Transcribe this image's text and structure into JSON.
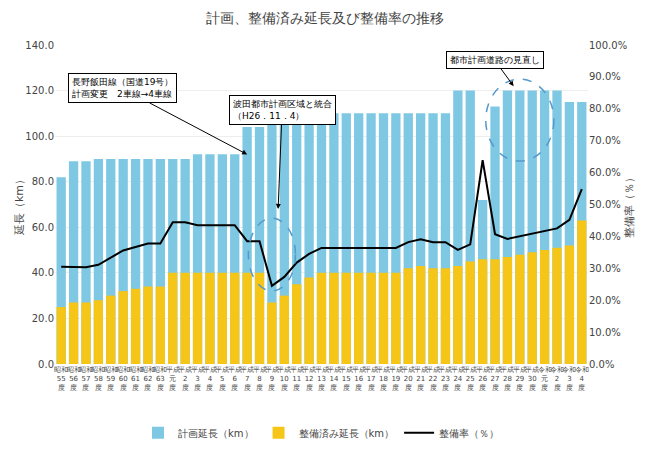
{
  "chart_data": {
    "type": "bar",
    "title": "計画、整備済み延長及び整備率の推移",
    "y_label": "延長（km）",
    "y2_label": "整備率（％）",
    "categories": [
      "昭和\n55\n度",
      "昭和\n56\n度",
      "昭和\n57\n度",
      "昭和\n58\n度",
      "昭和\n59\n度",
      "昭和\n60\n度",
      "昭和\n61\n度",
      "昭和\n62\n度",
      "昭和\n63\n度",
      "平成\n元\n度",
      "平成\n2\n度",
      "平成\n3\n度",
      "平成\n4\n度",
      "平成\n5\n度",
      "平成\n6\n度",
      "平成\n7\n度",
      "平成\n8\n度",
      "平成\n9\n度",
      "平成\n10\n度",
      "平成\n11\n度",
      "平成\n12\n度",
      "平成\n13\n度",
      "平成\n14\n度",
      "平成\n15\n度",
      "平成\n16\n度",
      "平成\n17\n度",
      "平成\n18\n度",
      "平成\n19\n度",
      "平成\n20\n度",
      "平成\n21\n度",
      "平成\n22\n度",
      "平成\n23\n度",
      "平成\n24\n度",
      "平成\n25\n度",
      "平成\n26\n度",
      "平成\n27\n度",
      "平成\n28\n度",
      "平成\n29\n度",
      "平成\n30\n度",
      "令和\n元\n度",
      "令和\n2\n度",
      "令和\n3\n度",
      "令和\n4\n度"
    ],
    "series": [
      {
        "name": "計画延長（km）",
        "type": "bar",
        "color": "#7EC8E3",
        "values": [
          82,
          89,
          89,
          90,
          90,
          90,
          90,
          90,
          90,
          90,
          90,
          92,
          92,
          92,
          92,
          104,
          104,
          110,
          110,
          110,
          110,
          110,
          110,
          110,
          110,
          110,
          110,
          110,
          110,
          110,
          110,
          110,
          120,
          120,
          72,
          113,
          120,
          120,
          120,
          120,
          120,
          115,
          115
        ]
      },
      {
        "name": "整備済み延長（km）",
        "type": "bar",
        "color": "#F5C518",
        "values": [
          25,
          27,
          27,
          28,
          30,
          32,
          33,
          34,
          34,
          40,
          40,
          40,
          40,
          40,
          40,
          40,
          40,
          27,
          30,
          35,
          38,
          40,
          40,
          40,
          40,
          40,
          40,
          40,
          42,
          43,
          42,
          42,
          43,
          45,
          46,
          46,
          47,
          48,
          49,
          50,
          51,
          52,
          63
        ]
      },
      {
        "name": "整備率（％）",
        "type": "line",
        "color": "#000000",
        "axis": "y2",
        "values": [
          0.305,
          0.303,
          0.303,
          0.311,
          0.333,
          0.356,
          0.367,
          0.378,
          0.378,
          0.444,
          0.444,
          0.435,
          0.435,
          0.435,
          0.435,
          0.385,
          0.385,
          0.245,
          0.273,
          0.318,
          0.345,
          0.364,
          0.364,
          0.364,
          0.364,
          0.364,
          0.364,
          0.364,
          0.382,
          0.391,
          0.382,
          0.382,
          0.358,
          0.375,
          0.639,
          0.407,
          0.392,
          0.4,
          0.408,
          0.417,
          0.425,
          0.452,
          0.548
        ]
      }
    ],
    "ylim": [
      0,
      140
    ],
    "yticks": [
      {
        "value": 0,
        "label": "0.0"
      },
      {
        "value": 20,
        "label": "20.0"
      },
      {
        "value": 40,
        "label": "40.0"
      },
      {
        "value": 60,
        "label": "60.0"
      },
      {
        "value": 80,
        "label": "80.0"
      },
      {
        "value": 100,
        "label": "100.0"
      },
      {
        "value": 120,
        "label": "120.0"
      },
      {
        "value": 140,
        "label": "140.0"
      }
    ],
    "y2lim": [
      0.0,
      1.0
    ],
    "y2ticks": [
      {
        "value": 0.0,
        "label": "0.0%"
      },
      {
        "value": 0.1,
        "label": "10.0%"
      },
      {
        "value": 0.2,
        "label": "20.0%"
      },
      {
        "value": 0.3,
        "label": "30.0%"
      },
      {
        "value": 0.4,
        "label": "40.0%"
      },
      {
        "value": 0.5,
        "label": "50.0%"
      },
      {
        "value": 0.6,
        "label": "60.0%"
      },
      {
        "value": 0.7,
        "label": "70.0%"
      },
      {
        "value": 0.8,
        "label": "80.0%"
      },
      {
        "value": 0.9,
        "label": "90.0%"
      },
      {
        "value": 1.0,
        "label": "100.0%"
      }
    ],
    "grid": true,
    "legend": "bottom",
    "annotations": [
      "長野飯田線（国道19号）\n計画変更　2車線→4車線",
      "波田都市計画区域と統合\n（H26．11．4）",
      "都市計画道路の見直し"
    ]
  }
}
